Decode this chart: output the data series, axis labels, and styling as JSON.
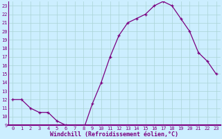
{
  "x": [
    0,
    1,
    2,
    3,
    4,
    5,
    6,
    7,
    8,
    9,
    10,
    11,
    12,
    13,
    14,
    15,
    16,
    17,
    18,
    19,
    20,
    21,
    22,
    23
  ],
  "y": [
    12,
    12,
    11,
    10.5,
    10.5,
    9.5,
    9,
    8.5,
    8.5,
    11.5,
    14,
    17,
    19.5,
    21,
    21.5,
    22,
    23,
    23.5,
    23,
    21.5,
    20,
    17.5,
    16.5,
    15
  ],
  "line_color": "#7b0080",
  "marker_color": "#7b0080",
  "bg_color": "#cceeff",
  "grid_color": "#aad4d4",
  "axis_color": "#7b0080",
  "xlabel": "Windchill (Refroidissement éolien,°C)",
  "ylim": [
    9,
    23.5
  ],
  "xlim": [
    -0.5,
    23.5
  ],
  "yticks": [
    9,
    10,
    11,
    12,
    13,
    14,
    15,
    16,
    17,
    18,
    19,
    20,
    21,
    22,
    23
  ],
  "xticks": [
    0,
    1,
    2,
    3,
    4,
    5,
    6,
    7,
    8,
    9,
    10,
    11,
    12,
    13,
    14,
    15,
    16,
    17,
    18,
    19,
    20,
    21,
    22,
    23
  ],
  "tick_fontsize": 5.0,
  "xlabel_fontsize": 6.0
}
